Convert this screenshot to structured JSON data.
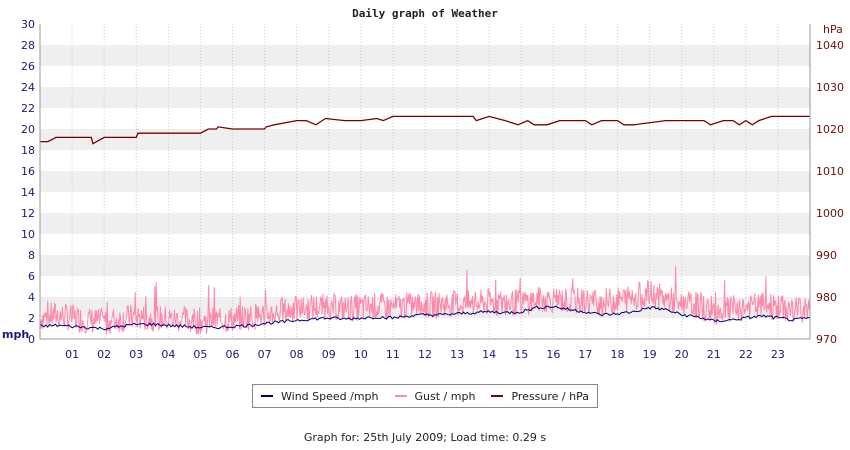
{
  "chart_data": {
    "type": "line",
    "title": "Daily graph of Weather",
    "y_left": {
      "unit": "mph",
      "range": [
        0,
        30
      ],
      "ticks": [
        "0",
        "2",
        "4",
        "6",
        "8",
        "10",
        "12",
        "14",
        "16",
        "18",
        "20",
        "22",
        "24",
        "26",
        "28",
        "30"
      ]
    },
    "y_right": {
      "unit": "hPa",
      "range": [
        970,
        1045
      ],
      "ticks": [
        "970",
        "980",
        "990",
        "1000",
        "1010",
        "1020",
        "1030",
        "1040"
      ]
    },
    "x": {
      "range": [
        0,
        24
      ],
      "ticks": [
        "01",
        "02",
        "03",
        "04",
        "05",
        "06",
        "07",
        "08",
        "09",
        "10",
        "11",
        "12",
        "13",
        "14",
        "15",
        "16",
        "17",
        "18",
        "19",
        "20",
        "21",
        "22",
        "23"
      ]
    },
    "grid": "horizontal alternating bands",
    "series": [
      {
        "name": "Wind Speed /mph",
        "axis": "left",
        "color": "#00007a",
        "x": [
          0,
          0.5,
          1,
          1.5,
          2,
          2.5,
          3,
          3.5,
          4,
          4.5,
          5,
          5.5,
          6,
          6.5,
          7,
          7.5,
          8,
          8.5,
          9,
          9.5,
          10,
          10.5,
          11,
          11.5,
          12,
          12.5,
          13,
          13.5,
          14,
          14.5,
          15,
          15.5,
          16,
          16.5,
          17,
          17.5,
          18,
          18.5,
          19,
          19.5,
          20,
          20.5,
          21,
          21.5,
          22,
          22.5,
          23,
          23.5,
          24
        ],
        "y": [
          1.2,
          1.3,
          1.2,
          1.1,
          1.0,
          1.2,
          1.4,
          1.4,
          1.3,
          1.2,
          1.1,
          1.1,
          1.2,
          1.3,
          1.5,
          1.6,
          1.8,
          1.9,
          2.0,
          1.9,
          2.0,
          2.1,
          2.0,
          2.2,
          2.3,
          2.3,
          2.4,
          2.5,
          2.6,
          2.5,
          2.6,
          3.0,
          3.1,
          2.8,
          2.6,
          2.3,
          2.4,
          2.6,
          3.0,
          2.8,
          2.3,
          2.1,
          1.7,
          1.8,
          2.0,
          2.2,
          2.0,
          1.8,
          2.0
        ]
      },
      {
        "name": "Gust / mph",
        "axis": "left",
        "color": "#ff88aa",
        "x": [
          0,
          0.5,
          1,
          1.5,
          2,
          2.5,
          3,
          3.5,
          4,
          4.5,
          5,
          5.5,
          6,
          6.5,
          7,
          7.5,
          8,
          8.5,
          9,
          9.5,
          10,
          10.5,
          11,
          11.5,
          12,
          12.5,
          13,
          13.5,
          14,
          14.5,
          15,
          15.5,
          16,
          16.5,
          17,
          17.5,
          18,
          18.5,
          19,
          19.5,
          20,
          20.5,
          21,
          21.5,
          22,
          22.5,
          23,
          23.5,
          24
        ],
        "y": [
          2.0,
          2.3,
          2.0,
          1.8,
          1.6,
          1.9,
          2.1,
          2.0,
          1.9,
          1.8,
          1.7,
          1.8,
          1.9,
          2.1,
          2.3,
          2.6,
          2.8,
          3.0,
          3.1,
          2.9,
          3.0,
          3.1,
          3.0,
          3.2,
          3.2,
          3.3,
          3.4,
          3.3,
          3.5,
          3.4,
          3.5,
          3.7,
          3.8,
          3.6,
          3.6,
          3.5,
          3.7,
          4.0,
          4.3,
          3.8,
          3.4,
          3.2,
          2.6,
          2.8,
          3.0,
          3.2,
          3.0,
          2.7,
          2.9
        ]
      },
      {
        "name": "Pressure / hPa",
        "axis": "right",
        "color": "#7a0000",
        "x": [
          0,
          0.25,
          0.5,
          1.0,
          1.6,
          1.65,
          2.0,
          3.0,
          3.05,
          4.0,
          5.0,
          5.25,
          5.5,
          5.55,
          6.0,
          7.0,
          7.05,
          7.3,
          8.0,
          8.3,
          8.6,
          8.9,
          9.5,
          10.0,
          10.5,
          10.7,
          11.0,
          12.0,
          13.0,
          13.5,
          13.6,
          14.0,
          14.5,
          14.9,
          15.2,
          15.4,
          15.8,
          16.2,
          17.0,
          17.2,
          17.5,
          18.0,
          18.2,
          18.5,
          19.5,
          20.0,
          20.7,
          20.9,
          21.3,
          21.6,
          21.8,
          22.0,
          22.2,
          22.4,
          22.8,
          24.0
        ],
        "y": [
          1017.0,
          1017.0,
          1018.0,
          1018.0,
          1018.0,
          1016.5,
          1018.0,
          1018.0,
          1019.0,
          1019.0,
          1019.0,
          1020.0,
          1020.0,
          1020.5,
          1020.0,
          1020.0,
          1020.5,
          1021.0,
          1022.0,
          1022.0,
          1021.0,
          1022.5,
          1022.0,
          1022.0,
          1022.5,
          1022.0,
          1023.0,
          1023.0,
          1023.0,
          1023.0,
          1022.0,
          1023.0,
          1022.0,
          1021.0,
          1022.0,
          1021.0,
          1021.0,
          1022.0,
          1022.0,
          1021.0,
          1022.0,
          1022.0,
          1021.0,
          1021.0,
          1022.0,
          1022.0,
          1022.0,
          1021.0,
          1022.0,
          1022.0,
          1021.0,
          1022.0,
          1021.0,
          1022.0,
          1023.0,
          1023.0
        ]
      }
    ]
  },
  "legend": [
    {
      "label": "Wind Speed /mph",
      "color": "#00007a"
    },
    {
      "label": "Gust / mph",
      "color": "#ff88aa"
    },
    {
      "label": "Pressure / hPa",
      "color": "#7a0000"
    }
  ],
  "footer": "Graph for: 25th July 2009; Load time: 0.29 s"
}
